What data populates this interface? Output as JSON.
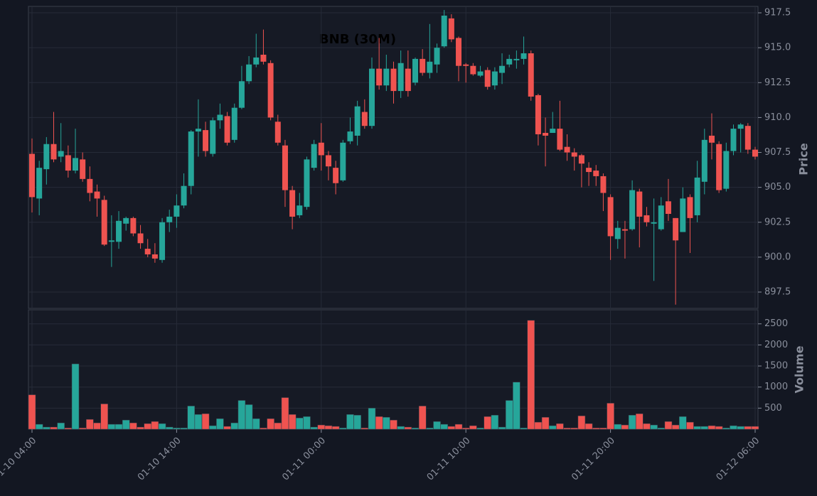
{
  "chart_data": {
    "type": "candlestick",
    "title": "BNB (30M)",
    "ylabel": "Price",
    "y2label": "Volume",
    "up_color": "#26a69a",
    "down_color": "#ef5350",
    "grid": true,
    "x": [
      "01-10 04:00",
      "01-10 04:30",
      "01-10 05:00",
      "01-10 05:30",
      "01-10 06:00",
      "01-10 06:30",
      "01-10 07:00",
      "01-10 07:30",
      "01-10 08:00",
      "01-10 08:30",
      "01-10 09:00",
      "01-10 09:30",
      "01-10 10:00",
      "01-10 10:30",
      "01-10 11:00",
      "01-10 11:30",
      "01-10 12:00",
      "01-10 12:30",
      "01-10 13:00",
      "01-10 13:30",
      "01-10 14:00",
      "01-10 14:30",
      "01-10 15:00",
      "01-10 15:30",
      "01-10 16:00",
      "01-10 16:30",
      "01-10 17:00",
      "01-10 17:30",
      "01-10 18:00",
      "01-10 18:30",
      "01-10 19:00",
      "01-10 19:30",
      "01-10 20:00",
      "01-10 20:30",
      "01-10 21:00",
      "01-10 21:30",
      "01-10 22:00",
      "01-10 22:30",
      "01-10 23:00",
      "01-10 23:30",
      "01-11 00:00",
      "01-11 00:30",
      "01-11 01:00",
      "01-11 01:30",
      "01-11 02:00",
      "01-11 02:30",
      "01-11 03:00",
      "01-11 03:30",
      "01-11 04:00",
      "01-11 04:30",
      "01-11 05:00",
      "01-11 05:30",
      "01-11 06:00",
      "01-11 06:30",
      "01-11 07:00",
      "01-11 07:30",
      "01-11 08:00",
      "01-11 08:30",
      "01-11 09:00",
      "01-11 09:30",
      "01-11 10:00",
      "01-11 10:30",
      "01-11 11:00",
      "01-11 11:30",
      "01-11 12:00",
      "01-11 12:30",
      "01-11 13:00",
      "01-11 13:30",
      "01-11 14:00",
      "01-11 14:30",
      "01-11 15:00",
      "01-11 15:30",
      "01-11 16:00",
      "01-11 16:30",
      "01-11 17:00",
      "01-11 17:30",
      "01-11 18:00",
      "01-11 18:30",
      "01-11 19:00",
      "01-11 19:30",
      "01-11 20:00",
      "01-11 20:30",
      "01-11 21:00",
      "01-11 21:30",
      "01-11 22:00",
      "01-11 22:30",
      "01-11 23:00",
      "01-11 23:30",
      "01-12 00:00",
      "01-12 00:30",
      "01-12 01:00",
      "01-12 01:30",
      "01-12 02:00",
      "01-12 02:30",
      "01-12 03:00",
      "01-12 03:30",
      "01-12 04:00",
      "01-12 04:30",
      "01-12 05:00",
      "01-12 05:30",
      "01-12 06:00"
    ],
    "open": [
      907.4,
      904.2,
      906.3,
      908.1,
      907.2,
      907.3,
      906.2,
      907.0,
      905.6,
      904.7,
      904.1,
      901.1,
      901.1,
      902.4,
      902.8,
      901.7,
      900.6,
      900.2,
      899.8,
      902.5,
      902.9,
      903.7,
      905.1,
      909.0,
      909.1,
      907.4,
      909.8,
      910.1,
      908.4,
      910.7,
      912.6,
      913.8,
      914.5,
      913.9,
      909.7,
      908.0,
      904.8,
      903.0,
      903.6,
      906.4,
      908.2,
      907.3,
      906.4,
      905.5,
      908.3,
      908.7,
      910.4,
      909.4,
      913.5,
      912.3,
      913.5,
      911.9,
      913.5,
      912.5,
      914.2,
      913.2,
      913.8,
      915.1,
      917.1,
      915.7,
      913.8,
      913.7,
      913.0,
      913.4,
      912.3,
      913.2,
      913.8,
      914.1,
      914.2,
      914.6,
      911.6,
      908.9,
      908.9,
      909.2,
      907.9,
      907.5,
      907.3,
      906.4,
      906.2,
      905.8,
      904.3,
      901.3,
      902.0,
      902.0,
      904.7,
      903.0,
      902.4,
      902.0,
      904.0,
      902.8,
      901.8,
      904.3,
      903.0,
      905.4,
      908.7,
      908.1,
      904.9,
      907.6,
      909.2,
      909.4,
      907.7
    ],
    "high": [
      908.5,
      906.9,
      908.6,
      910.4,
      909.6,
      908.0,
      909.2,
      907.5,
      906.5,
      905.2,
      904.4,
      903.0,
      903.3,
      902.9,
      902.9,
      902.3,
      901.3,
      901.0,
      902.8,
      903.4,
      904.5,
      906.0,
      909.1,
      911.3,
      909.7,
      910.0,
      911.0,
      910.4,
      911.0,
      913.7,
      914.4,
      916.0,
      916.3,
      914.1,
      910.2,
      908.4,
      905.1,
      904.6,
      907.2,
      908.4,
      909.6,
      907.6,
      906.9,
      908.4,
      910.0,
      911.2,
      911.3,
      914.3,
      915.7,
      914.5,
      914.0,
      914.8,
      914.8,
      914.3,
      914.9,
      916.7,
      915.3,
      917.7,
      917.4,
      915.8,
      913.9,
      913.9,
      913.7,
      913.6,
      913.6,
      914.6,
      914.5,
      914.8,
      915.8,
      914.8,
      911.7,
      910.0,
      910.4,
      911.2,
      908.8,
      907.8,
      907.4,
      906.8,
      906.6,
      906.0,
      904.5,
      902.6,
      902.6,
      905.5,
      904.9,
      903.6,
      904.2,
      904.3,
      905.6,
      902.8,
      905.0,
      904.5,
      906.9,
      909.2,
      910.3,
      908.3,
      908.2,
      909.5,
      909.6,
      909.6,
      907.9
    ],
    "low": [
      903.2,
      903.0,
      905.2,
      906.8,
      906.8,
      905.7,
      906.0,
      905.4,
      904.0,
      902.9,
      900.8,
      899.3,
      900.6,
      901.9,
      901.5,
      900.6,
      900.0,
      899.6,
      899.6,
      901.8,
      902.1,
      903.5,
      904.5,
      907.2,
      907.2,
      907.2,
      909.2,
      908.0,
      908.2,
      910.6,
      912.4,
      913.6,
      913.8,
      909.8,
      908.0,
      903.6,
      902.0,
      902.8,
      903.4,
      906.2,
      906.2,
      905.5,
      904.5,
      905.4,
      908.1,
      908.0,
      909.2,
      909.2,
      912.0,
      911.9,
      911.0,
      911.4,
      911.5,
      912.3,
      913.0,
      912.8,
      913.2,
      915.0,
      915.4,
      912.6,
      912.5,
      913.0,
      912.9,
      912.0,
      912.0,
      912.4,
      913.6,
      913.5,
      913.8,
      911.2,
      908.0,
      906.5,
      908.9,
      907.6,
      906.9,
      906.2,
      905.0,
      905.1,
      905.1,
      903.3,
      899.8,
      900.6,
      899.9,
      901.9,
      900.7,
      902.2,
      898.3,
      901.9,
      902.6,
      896.6,
      901.8,
      900.3,
      902.5,
      904.5,
      907.0,
      904.6,
      904.7,
      907.3,
      907.5,
      907.4,
      907.0
    ],
    "close": [
      904.3,
      906.4,
      908.1,
      907.0,
      907.6,
      906.2,
      907.1,
      905.6,
      904.6,
      904.2,
      900.9,
      901.2,
      902.6,
      902.8,
      901.7,
      901.0,
      900.2,
      899.9,
      902.5,
      902.9,
      903.7,
      905.1,
      909.0,
      909.2,
      907.6,
      909.8,
      910.2,
      908.2,
      910.7,
      912.6,
      913.8,
      914.3,
      914.0,
      910.0,
      908.2,
      904.8,
      902.9,
      903.7,
      907.0,
      908.1,
      907.3,
      906.5,
      905.3,
      908.2,
      909.0,
      910.8,
      909.4,
      913.5,
      912.3,
      913.5,
      911.9,
      913.9,
      911.9,
      914.2,
      913.2,
      914.0,
      915.0,
      917.3,
      915.6,
      913.7,
      913.7,
      913.1,
      913.3,
      912.2,
      913.3,
      913.7,
      914.2,
      914.2,
      914.6,
      911.5,
      908.8,
      908.7,
      909.2,
      907.7,
      907.5,
      907.2,
      906.7,
      906.1,
      905.8,
      904.6,
      901.5,
      902.1,
      901.9,
      904.8,
      902.9,
      902.5,
      902.5,
      903.7,
      903.1,
      901.2,
      904.2,
      902.8,
      905.7,
      908.4,
      908.2,
      904.8,
      907.6,
      909.2,
      909.5,
      907.7,
      907.2
    ],
    "volume": [
      817,
      117,
      50,
      50,
      150,
      30,
      1550,
      30,
      233,
      150,
      600,
      117,
      117,
      217,
      150,
      50,
      133,
      183,
      133,
      50,
      30,
      30,
      550,
      350,
      367,
      83,
      250,
      67,
      150,
      683,
      583,
      250,
      30,
      250,
      150,
      750,
      350,
      267,
      300,
      50,
      100,
      83,
      67,
      30,
      350,
      333,
      30,
      500,
      300,
      283,
      217,
      67,
      50,
      30,
      550,
      30,
      183,
      117,
      67,
      117,
      30,
      83,
      30,
      300,
      333,
      50,
      683,
      1117,
      30,
      2583,
      167,
      283,
      83,
      133,
      30,
      30,
      317,
      133,
      30,
      30,
      617,
      117,
      100,
      333,
      367,
      133,
      100,
      30,
      183,
      100,
      300,
      167,
      67,
      67,
      83,
      67,
      30,
      83,
      67,
      67,
      67
    ],
    "xticks": [
      "01-10 04:00",
      "01-10 14:00",
      "01-11 00:00",
      "01-11 10:00",
      "01-11 20:00",
      "01-12 06:00"
    ],
    "ylim": [
      896.33,
      917.96
    ],
    "yticks": [
      897.5,
      {
        "value": 900,
        "label": "900.0"
      },
      902.5,
      {
        "value": 905,
        "label": "905.0"
      },
      907.5,
      {
        "value": 910,
        "label": "910.0"
      },
      912.5,
      {
        "value": 915,
        "label": "915.0"
      },
      917.5
    ],
    "y2lim": [
      0,
      2833
    ],
    "y2ticks": [
      500,
      1000,
      1500,
      2000,
      2500
    ]
  }
}
